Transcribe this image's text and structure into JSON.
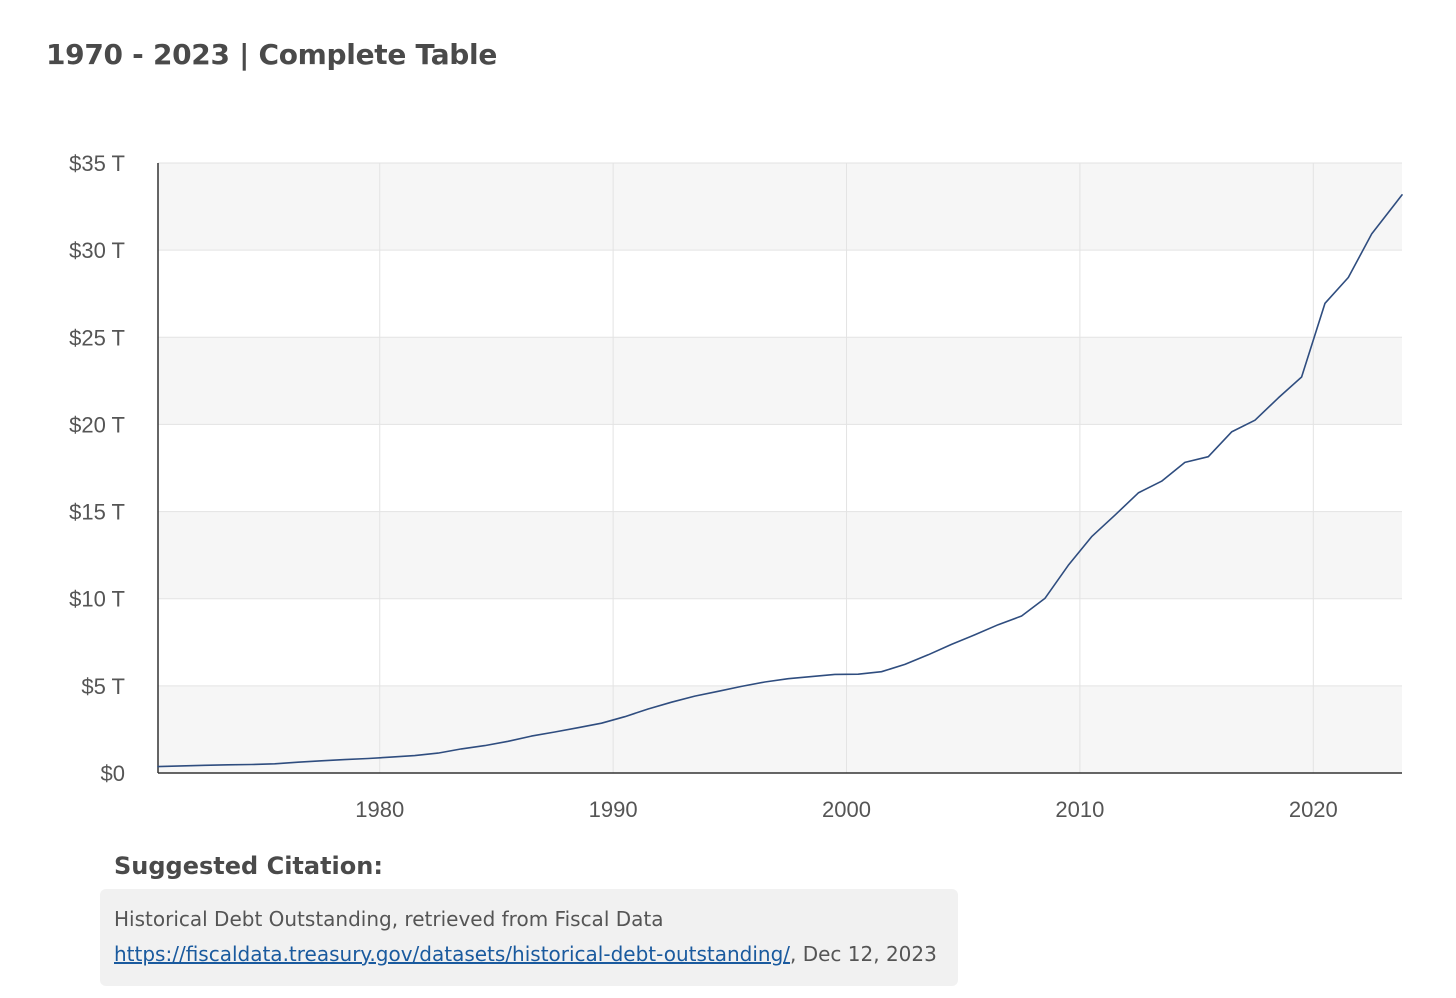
{
  "header": {
    "title": "1970 - 2023 | Complete Table"
  },
  "citation": {
    "label": "Suggested Citation:",
    "text": "Historical Debt Outstanding, retrieved from Fiscal Data",
    "link": "https://fiscaldata.treasury.gov/datasets/historical-debt-outstanding/",
    "suffix": ", Dec 12, 2023"
  },
  "colors": {
    "line": "#2f4d7f",
    "band": "#f6f6f6",
    "grid": "#e3e3e3",
    "axis": "#333333",
    "link": "#1a5a9e"
  },
  "chart_data": {
    "type": "line",
    "title": "",
    "xlabel": "",
    "ylabel": "",
    "xlim": [
      1970.5,
      2023.8
    ],
    "ylim": [
      0,
      35
    ],
    "grid": true,
    "x_ticks": [
      1980,
      1990,
      2000,
      2010,
      2020
    ],
    "x_tick_labels": [
      "1980",
      "1990",
      "2000",
      "2010",
      "2020"
    ],
    "y_ticks": [
      0,
      5,
      10,
      15,
      20,
      25,
      30,
      35
    ],
    "y_tick_labels": [
      "$0",
      "$5 T",
      "$10 T",
      "$15 T",
      "$20 T",
      "$25 T",
      "$30 T",
      "$35 T"
    ],
    "series": [
      {
        "x": [
          1970.5,
          1971.5,
          1972.5,
          1973.5,
          1974.5,
          1975.5,
          1976.5,
          1977.5,
          1978.5,
          1979.5,
          1980.5,
          1981.5,
          1982.5,
          1983.5,
          1984.5,
          1985.5,
          1986.5,
          1987.5,
          1988.5,
          1989.5,
          1990.5,
          1991.5,
          1992.5,
          1993.5,
          1994.5,
          1995.5,
          1996.5,
          1997.5,
          1998.5,
          1999.5,
          2000.5,
          2001.5,
          2002.5,
          2003.5,
          2004.5,
          2005.5,
          2006.5,
          2007.5,
          2008.5,
          2009.5,
          2010.5,
          2011.5,
          2012.5,
          2013.5,
          2014.5,
          2015.5,
          2016.5,
          2017.5,
          2018.5,
          2019.5,
          2020.5,
          2021.5,
          2022.5,
          2023.8
        ],
        "values": [
          0.37,
          0.41,
          0.44,
          0.47,
          0.49,
          0.53,
          0.62,
          0.7,
          0.77,
          0.83,
          0.91,
          1.0,
          1.14,
          1.38,
          1.57,
          1.82,
          2.12,
          2.35,
          2.6,
          2.86,
          3.23,
          3.67,
          4.06,
          4.41,
          4.69,
          4.97,
          5.22,
          5.41,
          5.53,
          5.66,
          5.67,
          5.81,
          6.23,
          6.78,
          7.38,
          7.93,
          8.51,
          9.01,
          10.02,
          11.91,
          13.56,
          14.79,
          16.07,
          16.74,
          17.82,
          18.15,
          19.57,
          20.24,
          21.52,
          22.72,
          26.95,
          28.43,
          30.93,
          33.17
        ]
      }
    ]
  }
}
